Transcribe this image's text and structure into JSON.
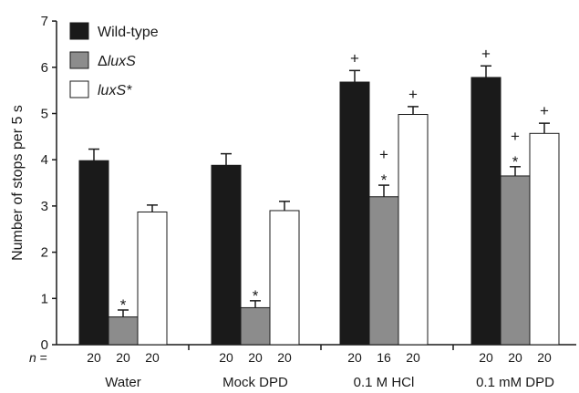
{
  "chart_data": {
    "type": "bar",
    "ylabel": "Number of stops per 5 s",
    "xlabel": "",
    "ylim": [
      0,
      7
    ],
    "yticks": [
      0,
      1,
      2,
      3,
      4,
      5,
      6,
      7
    ],
    "categories": [
      "Water",
      "Mock DPD",
      "0.1 M HCl",
      "0.1 mM DPD"
    ],
    "legend_position": "top-left",
    "n_prefix": "n =",
    "series": [
      {
        "name_prefix": "",
        "name_italic": "Wild-type",
        "name_is_italic": false,
        "color": "#1a1a1a",
        "values": [
          3.98,
          3.88,
          5.68,
          5.78
        ],
        "errors": [
          0.25,
          0.25,
          0.25,
          0.25
        ],
        "n": [
          "20",
          "20",
          "20",
          "20"
        ],
        "annotations": [
          "",
          "",
          "+",
          "+"
        ]
      },
      {
        "name_prefix": "Δ",
        "name_italic": "luxS",
        "name_is_italic": true,
        "color": "#8c8c8c",
        "values": [
          0.6,
          0.8,
          3.2,
          3.65
        ],
        "errors": [
          0.15,
          0.15,
          0.25,
          0.2
        ],
        "n": [
          "20",
          "20",
          "16",
          "20"
        ],
        "annotations": [
          "*",
          "*",
          "+*",
          "+*"
        ]
      },
      {
        "name_prefix": "",
        "name_italic": "luxS*",
        "name_is_italic": true,
        "color": "#ffffff",
        "values": [
          2.87,
          2.9,
          4.98,
          4.57
        ],
        "errors": [
          0.15,
          0.2,
          0.17,
          0.22
        ],
        "n": [
          "20",
          "20",
          "20",
          "20"
        ],
        "annotations": [
          "",
          "",
          "+",
          "+"
        ]
      }
    ]
  }
}
